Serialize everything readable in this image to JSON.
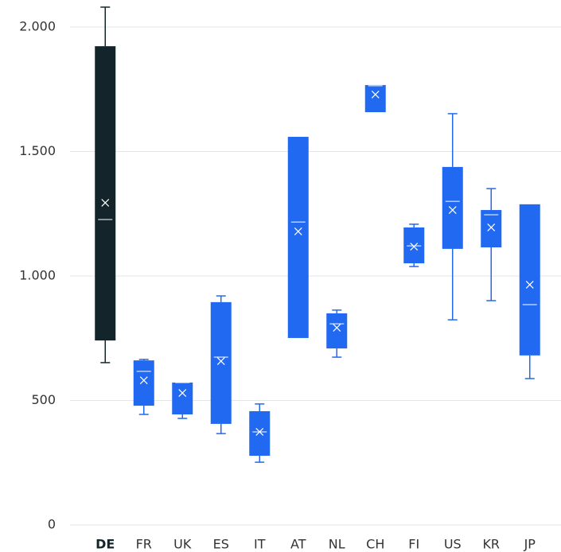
{
  "chart_data": {
    "type": "box",
    "categories": [
      "DE",
      "FR",
      "UK",
      "ES",
      "IT",
      "AT",
      "NL",
      "CH",
      "FI",
      "US",
      "KR",
      "JP"
    ],
    "boxes": [
      {
        "min": 652,
        "q1": 741,
        "median": 1227,
        "q3": 1923,
        "max": 2080,
        "mean": 1294
      },
      {
        "min": 444,
        "q1": 479,
        "median": 617,
        "q3": 661,
        "max": 665,
        "mean": 581
      },
      {
        "min": 428,
        "q1": 444,
        "median": 572,
        "q3": 572,
        "max": 572,
        "mean": 530
      },
      {
        "min": 367,
        "q1": 406,
        "median": 674,
        "q3": 895,
        "max": 920,
        "mean": 658
      },
      {
        "min": 252,
        "q1": 278,
        "median": 374,
        "q3": 457,
        "max": 486,
        "mean": 374
      },
      {
        "min": 751,
        "q1": 751,
        "median": 1217,
        "q3": 1559,
        "max": 1559,
        "mean": 1179
      },
      {
        "min": 674,
        "q1": 709,
        "median": 808,
        "q3": 850,
        "max": 863,
        "mean": 792
      },
      {
        "min": 1658,
        "q1": 1658,
        "median": 1764,
        "q3": 1767,
        "max": 1767,
        "mean": 1729
      },
      {
        "min": 1038,
        "q1": 1051,
        "median": 1121,
        "q3": 1195,
        "max": 1208,
        "mean": 1118
      },
      {
        "min": 824,
        "q1": 1109,
        "median": 1300,
        "q3": 1438,
        "max": 1652,
        "mean": 1265
      },
      {
        "min": 901,
        "q1": 1115,
        "median": 1246,
        "q3": 1265,
        "max": 1351,
        "mean": 1195
      },
      {
        "min": 588,
        "q1": 681,
        "median": 885,
        "q3": 1288,
        "max": 1288,
        "mean": 965
      }
    ],
    "color": "#2169f0",
    "highlight_color": "#13252b",
    "highlight": 0,
    "ylim": [
      0,
      2000
    ],
    "yticks": [
      0,
      500,
      {
        "value": 1000,
        "label": "1.000"
      },
      {
        "value": 1500,
        "label": "1.500"
      },
      {
        "value": 2000,
        "label": "2.000"
      }
    ],
    "grid": true
  }
}
